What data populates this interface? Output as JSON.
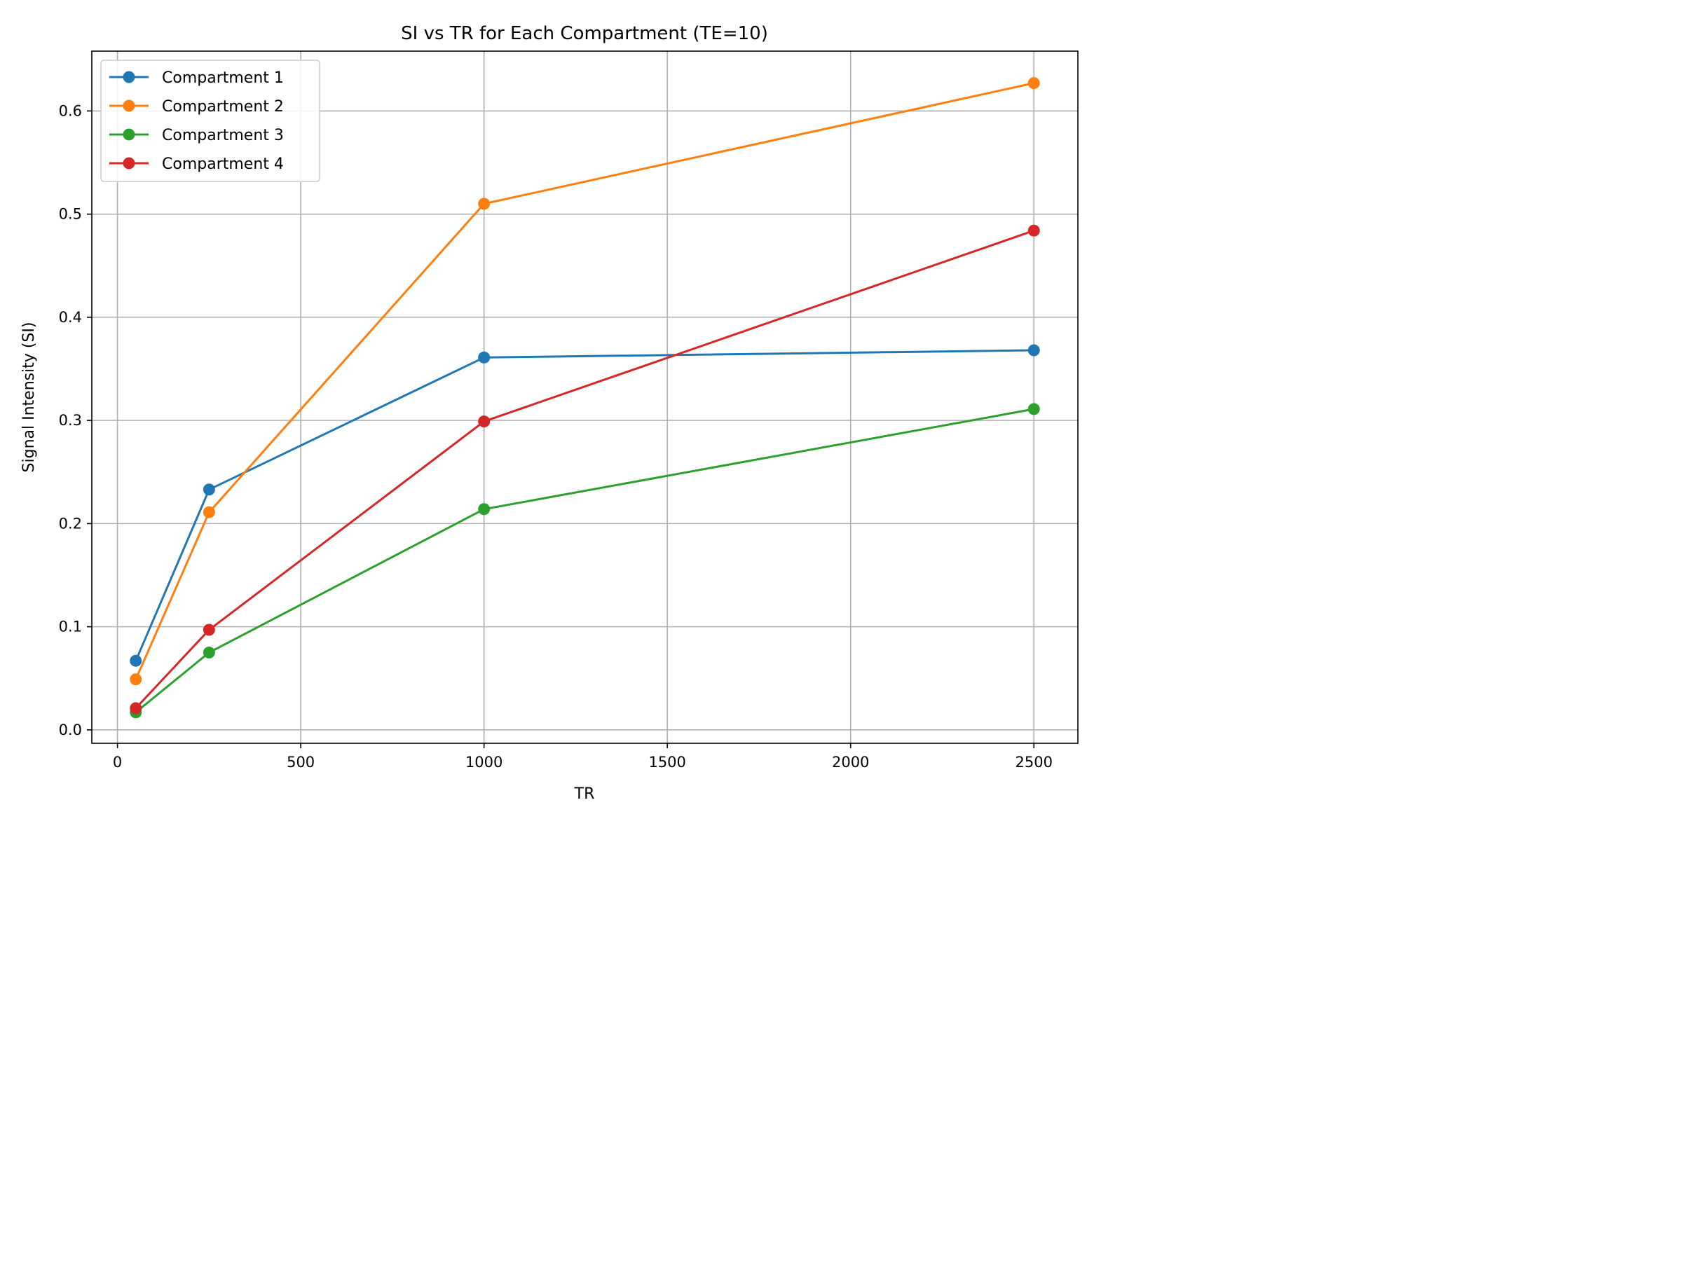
{
  "chart_data": {
    "type": "line",
    "title": "SI vs TR for Each Compartment (TE=10)",
    "xlabel": "TR",
    "ylabel": "Signal Intensity (SI)",
    "x": [
      50,
      250,
      1000,
      2500
    ],
    "xlim": [
      -70,
      2620
    ],
    "ylim": [
      -0.013,
      0.658
    ],
    "xticks": [
      0,
      500,
      1000,
      1500,
      2000,
      2500
    ],
    "yticks": [
      0.0,
      0.1,
      0.2,
      0.3,
      0.4,
      0.5,
      0.6
    ],
    "xtick_labels": [
      "0",
      "500",
      "1000",
      "1500",
      "2000",
      "2500"
    ],
    "ytick_labels": [
      "0.0",
      "0.1",
      "0.2",
      "0.3",
      "0.4",
      "0.5",
      "0.6"
    ],
    "grid": true,
    "legend_position": "top-left",
    "series": [
      {
        "name": "Compartment 1",
        "color": "#1f77b4",
        "values": [
          0.067,
          0.233,
          0.361,
          0.368
        ]
      },
      {
        "name": "Compartment 2",
        "color": "#ff7f0e",
        "values": [
          0.049,
          0.211,
          0.51,
          0.627
        ]
      },
      {
        "name": "Compartment 3",
        "color": "#2ca02c",
        "values": [
          0.017,
          0.075,
          0.214,
          0.311
        ]
      },
      {
        "name": "Compartment 4",
        "color": "#d62728",
        "values": [
          0.021,
          0.097,
          0.299,
          0.484
        ]
      }
    ]
  }
}
